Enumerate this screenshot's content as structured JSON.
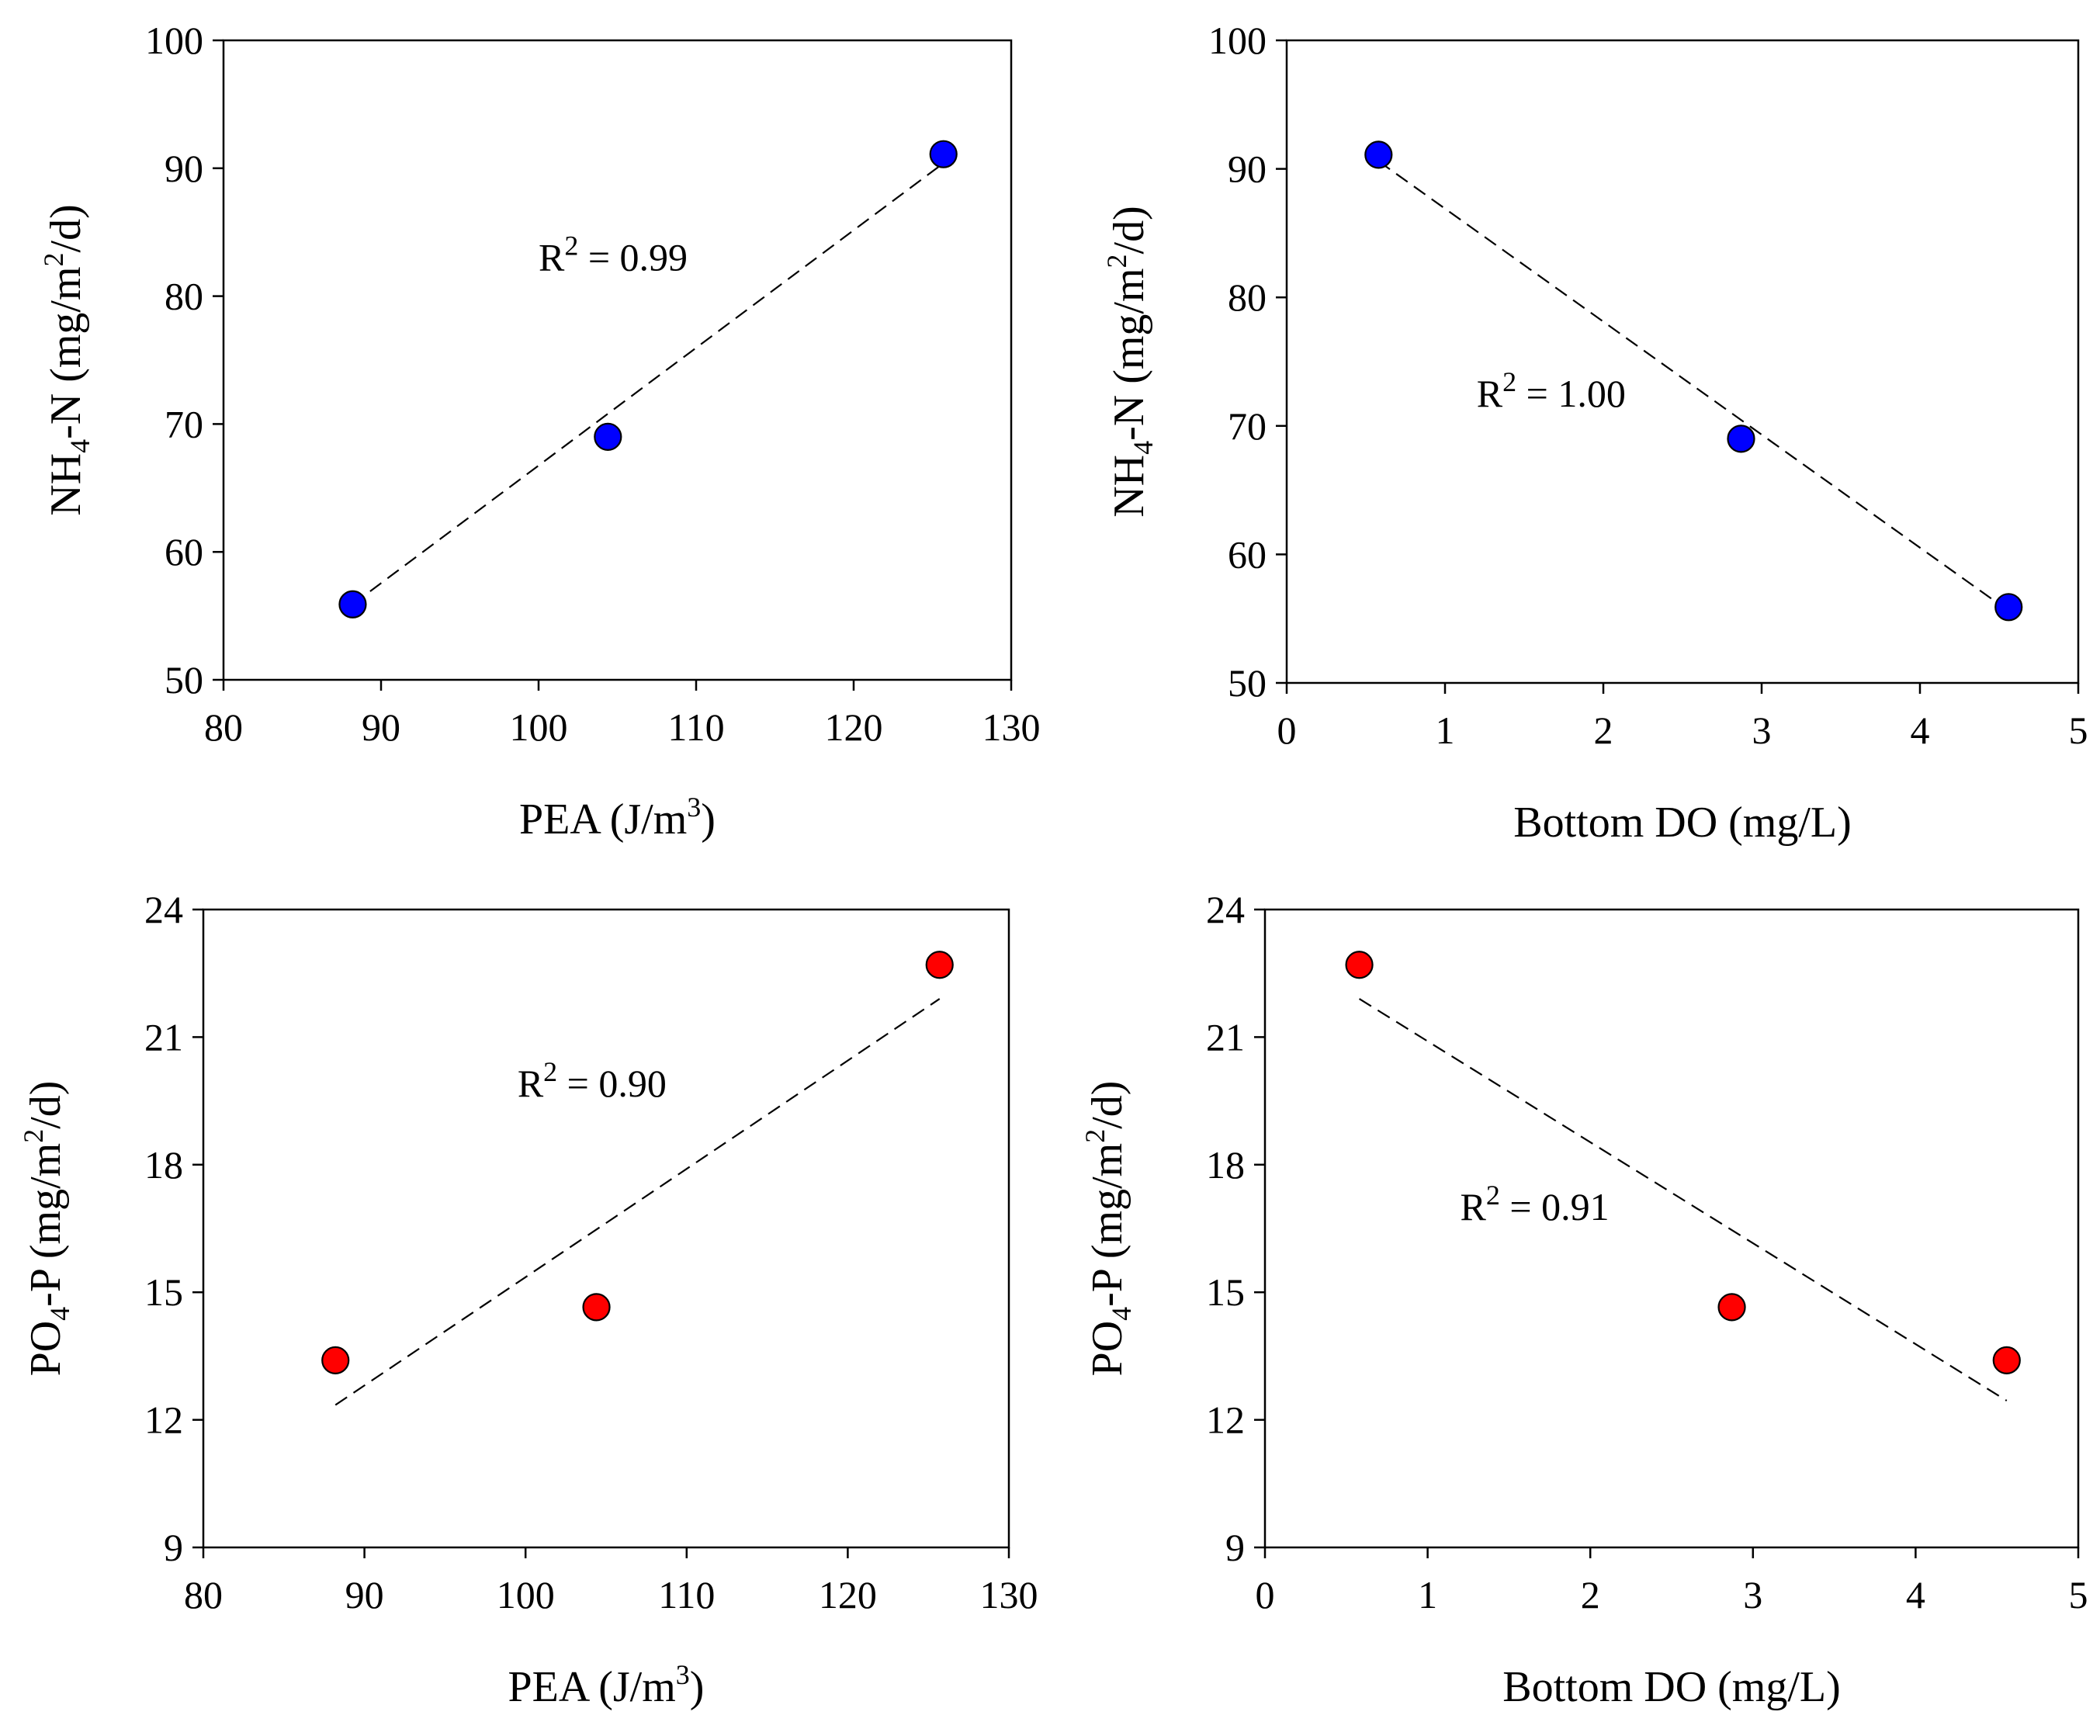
{
  "chart_data": [
    {
      "type": "scatter",
      "panel": "top-left",
      "xlabel": {
        "pre": "PEA (J/m",
        "sup": "3",
        "post": ")"
      },
      "ylabel": {
        "pre": "NH",
        "sub": "4",
        "mid": "-N (mg/m",
        "sup": "2",
        "post": "/d)"
      },
      "xlim": [
        80,
        130
      ],
      "ylim": [
        50,
        100
      ],
      "xticks": [
        80,
        90,
        100,
        110,
        120,
        130
      ],
      "yticks": [
        50,
        60,
        70,
        80,
        90,
        100
      ],
      "series": [
        {
          "name": "NH4-N",
          "color": "#0000ff",
          "x": [
            88.2,
            104.4,
            125.7
          ],
          "y": [
            55.9,
            69.0,
            91.1
          ]
        }
      ],
      "fit": {
        "x": [
          88.2,
          125.7
        ],
        "y": [
          55.9,
          90.4
        ]
      },
      "r2": {
        "pre": "R",
        "sup": "2",
        "value": " = 0.99",
        "at": [
          100,
          82
        ]
      }
    },
    {
      "type": "scatter",
      "panel": "top-right",
      "xlabel": {
        "pre": "Bottom DO (mg/L)",
        "sup": "",
        "post": ""
      },
      "ylabel": {
        "pre": "NH",
        "sub": "4",
        "mid": "-N (mg/m",
        "sup": "2",
        "post": "/d)"
      },
      "xlim": [
        0,
        5
      ],
      "ylim": [
        50,
        100
      ],
      "xticks": [
        0,
        1,
        2,
        3,
        4,
        5
      ],
      "yticks": [
        50,
        60,
        70,
        80,
        90,
        100
      ],
      "series": [
        {
          "name": "NH4-N",
          "color": "#0000ff",
          "x": [
            0.58,
            2.87,
            4.56
          ],
          "y": [
            91.1,
            69.0,
            55.9
          ]
        }
      ],
      "fit": {
        "x": [
          0.58,
          4.56
        ],
        "y": [
          90.6,
          55.6
        ]
      },
      "r2": {
        "pre": "R",
        "sup": "2",
        "value": " = 1.00",
        "at": [
          1.2,
          71.5
        ]
      }
    },
    {
      "type": "scatter",
      "panel": "bottom-left",
      "xlabel": {
        "pre": "PEA (J/m",
        "sup": "3",
        "post": ")"
      },
      "ylabel": {
        "pre": "PO",
        "sub": "4",
        "mid": "-P (mg/m",
        "sup": "2",
        "post": "/d)"
      },
      "xlim": [
        80,
        130
      ],
      "ylim": [
        9,
        24
      ],
      "xticks": [
        80,
        90,
        100,
        110,
        120,
        130
      ],
      "yticks": [
        9,
        12,
        15,
        18,
        21,
        24
      ],
      "series": [
        {
          "name": "PO4-P",
          "color": "#ff0000",
          "x": [
            88.2,
            104.4,
            125.7
          ],
          "y": [
            13.4,
            14.65,
            22.7
          ]
        }
      ],
      "fit": {
        "x": [
          88.2,
          125.7
        ],
        "y": [
          12.35,
          21.9
        ]
      },
      "r2": {
        "pre": "R",
        "sup": "2",
        "value": " = 0.90",
        "at": [
          99.5,
          19.6
        ]
      }
    },
    {
      "type": "scatter",
      "panel": "bottom-right",
      "xlabel": {
        "pre": "Bottom DO (mg/L)",
        "sup": "",
        "post": ""
      },
      "ylabel": {
        "pre": "PO",
        "sub": "4",
        "mid": "-P (mg/m",
        "sup": "2",
        "post": "/d)"
      },
      "xlim": [
        0,
        5
      ],
      "ylim": [
        9,
        24
      ],
      "xticks": [
        0,
        1,
        2,
        3,
        4,
        5
      ],
      "yticks": [
        9,
        12,
        15,
        18,
        21,
        24
      ],
      "series": [
        {
          "name": "PO4-P",
          "color": "#ff0000",
          "x": [
            0.58,
            2.87,
            4.56
          ],
          "y": [
            22.7,
            14.65,
            13.4
          ]
        }
      ],
      "fit": {
        "x": [
          0.58,
          4.56
        ],
        "y": [
          21.9,
          12.45
        ]
      },
      "r2": {
        "pre": "R",
        "sup": "2",
        "value": " = 0.91",
        "at": [
          1.2,
          16.7
        ]
      }
    }
  ]
}
